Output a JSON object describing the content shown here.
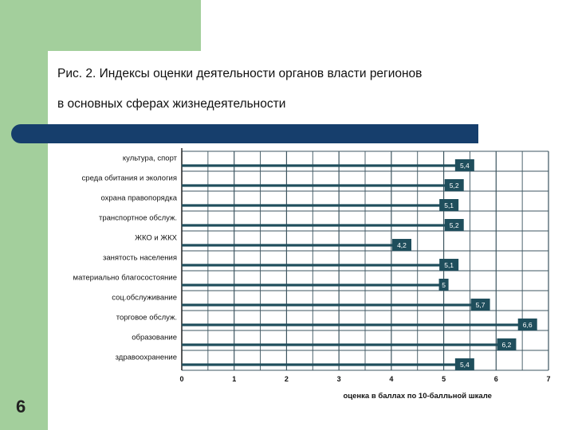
{
  "slide": {
    "title_line1": "Рис. 2. Индексы оценки деятельности органов власти регионов",
    "title_line2": "в основных сферах жизнедеятельности",
    "number": "6"
  },
  "colors": {
    "green_band": "#a3cf9c",
    "blue_bar": "#163e6c",
    "bar": "#1f4e5c",
    "grid": "#3d5560"
  },
  "chart_data": {
    "type": "bar",
    "orientation": "horizontal",
    "categories": [
      "культура, спорт",
      "среда обитания и экология",
      "охрана правопорядка",
      "транспортное обслуж.",
      "ЖКО и ЖКХ",
      "занятость населения",
      "материально благосостояние",
      "соц.обслуживание",
      "торговое обслуж.",
      "образование",
      "здравоохранение"
    ],
    "values": [
      5.4,
      5.2,
      5.1,
      5.2,
      4.2,
      5.1,
      5,
      5.7,
      6.6,
      6.2,
      5.4
    ],
    "value_labels": [
      "5,4",
      "5,2",
      "5,1",
      "5,2",
      "4,2",
      "5,1",
      "5",
      "5,7",
      "6,6",
      "6,2",
      "5,4"
    ],
    "xlim": [
      0,
      7
    ],
    "xticks": [
      "0",
      "1",
      "2",
      "3",
      "4",
      "5",
      "6",
      "7"
    ],
    "xlabel": "оценка в баллах по 10-балльной шкале",
    "ylabel": "",
    "grid": true
  }
}
